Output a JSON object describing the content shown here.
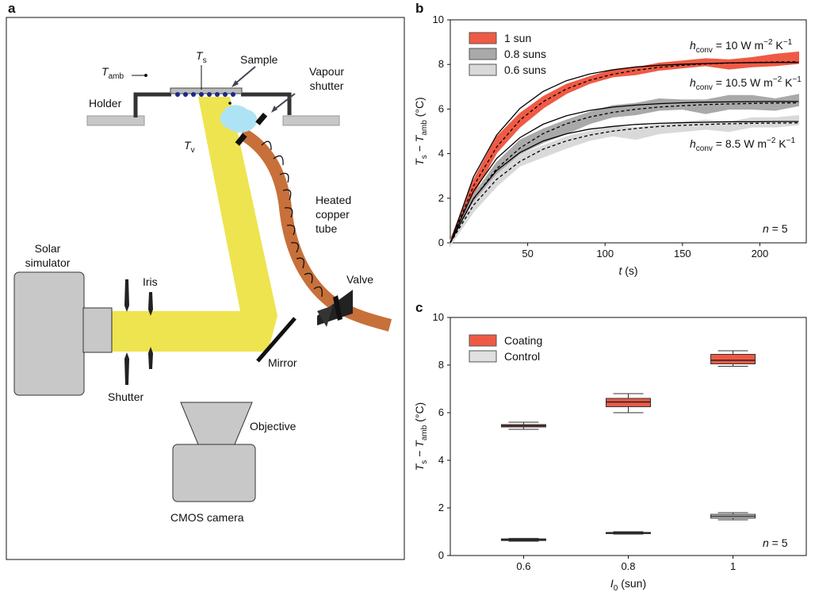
{
  "panel_labels": [
    "a",
    "b",
    "c"
  ],
  "diagram": {
    "labels": [
      {
        "segments": [
          {
            "t": "T",
            "s": "i"
          },
          {
            "t": "amb",
            "s": "sub"
          }
        ]
      },
      {
        "segments": [
          {
            "t": "T",
            "s": "i"
          },
          {
            "t": "s",
            "s": "sub"
          }
        ]
      },
      {
        "lines": [
          "Sample"
        ]
      },
      {
        "lines": [
          "Vapour",
          "shutter"
        ]
      },
      {
        "lines": [
          "Holder"
        ]
      },
      {
        "segments": [
          {
            "t": "T",
            "s": "i"
          },
          {
            "t": "v",
            "s": "sub"
          }
        ]
      },
      {
        "lines": [
          "Heated",
          "copper",
          "tube"
        ]
      },
      {
        "lines": [
          "Solar",
          "simulator"
        ]
      },
      {
        "lines": [
          "Iris"
        ]
      },
      {
        "lines": [
          "Valve"
        ]
      },
      {
        "lines": [
          "Mirror"
        ]
      },
      {
        "lines": [
          "Shutter"
        ]
      },
      {
        "lines": [
          "Objective"
        ]
      },
      {
        "lines": [
          "CMOS camera"
        ]
      }
    ]
  },
  "chart_data": [
    {
      "type": "line",
      "x": [
        0,
        15,
        30,
        45,
        60,
        75,
        90,
        105,
        120,
        135,
        150,
        165,
        180,
        195,
        210,
        225
      ],
      "xlim": [
        0,
        230
      ],
      "xticks": [
        50,
        100,
        150,
        200
      ],
      "ylim": [
        0,
        10
      ],
      "yticks": [
        0,
        2,
        4,
        6,
        8,
        10
      ],
      "xlabel": [
        {
          "t": "t",
          "s": "i"
        },
        {
          "t": " (s)"
        }
      ],
      "ylabel": [
        {
          "t": "T",
          "s": "i"
        },
        {
          "t": "s",
          "s": "sub"
        },
        {
          "t": " − "
        },
        {
          "t": "T",
          "s": "i"
        },
        {
          "t": "amb",
          "s": "sub"
        },
        {
          "t": " (°C)"
        }
      ],
      "legend": "upper left",
      "series": [
        {
          "name": "1 sun",
          "color": "#ef5a45",
          "values": [
            0,
            2.5,
            4.4,
            5.5,
            6.3,
            6.9,
            7.3,
            7.6,
            7.7,
            7.9,
            8.0,
            8.1,
            8.0,
            8.1,
            8.2,
            8.3
          ],
          "errors": [
            0.1,
            0.3,
            0.35,
            0.3,
            0.25,
            0.2,
            0.15,
            0.15,
            0.15,
            0.15,
            0.15,
            0.15,
            0.2,
            0.2,
            0.25,
            0.25
          ]
        },
        {
          "name": "0.8 suns",
          "color": "#a9a9a9",
          "values": [
            0,
            1.9,
            3.3,
            4.3,
            4.8,
            5.2,
            5.6,
            5.9,
            6.0,
            6.2,
            6.2,
            6.1,
            6.3,
            6.3,
            6.2,
            6.4
          ],
          "errors": [
            0.1,
            0.25,
            0.3,
            0.3,
            0.3,
            0.3,
            0.25,
            0.25,
            0.25,
            0.25,
            0.2,
            0.3,
            0.3,
            0.3,
            0.25,
            0.25
          ]
        },
        {
          "name": "0.6 suns",
          "color": "#d9d9d9",
          "values": [
            0,
            1.6,
            2.8,
            3.7,
            4.1,
            4.5,
            4.8,
            5.0,
            4.9,
            5.1,
            5.2,
            5.3,
            5.2,
            5.4,
            5.4,
            5.5
          ],
          "errors": [
            0.1,
            0.2,
            0.25,
            0.25,
            0.25,
            0.25,
            0.2,
            0.2,
            0.25,
            0.2,
            0.2,
            0.2,
            0.2,
            0.2,
            0.2,
            0.2
          ]
        },
        {
          "color": "#000000",
          "line_style": "solid",
          "values": [
            0,
            2.96,
            4.84,
            6.03,
            6.79,
            7.27,
            7.57,
            7.76,
            7.89,
            7.96,
            8.01,
            8.04,
            8.07,
            8.08,
            8.09,
            8.09
          ]
        },
        {
          "color": "#000000",
          "line_style": "dashed",
          "values": [
            0,
            2.55,
            4.3,
            5.5,
            6.33,
            6.9,
            7.29,
            7.56,
            7.74,
            7.87,
            7.96,
            8.02,
            8.06,
            8.09,
            8.11,
            8.12
          ]
        },
        {
          "color": "#000000",
          "line_style": "solid",
          "values": [
            0,
            2.32,
            3.79,
            4.72,
            5.32,
            5.7,
            5.94,
            6.09,
            6.18,
            6.24,
            6.28,
            6.31,
            6.32,
            6.33,
            6.34,
            6.34
          ]
        },
        {
          "color": "#000000",
          "line_style": "dashed",
          "values": [
            0,
            1.97,
            3.33,
            4.25,
            4.9,
            5.34,
            5.64,
            5.85,
            5.99,
            6.09,
            6.15,
            6.2,
            6.23,
            6.25,
            6.27,
            6.28
          ]
        },
        {
          "color": "#000000",
          "line_style": "solid",
          "values": [
            0,
            1.99,
            3.25,
            4.05,
            4.57,
            4.89,
            5.1,
            5.22,
            5.31,
            5.36,
            5.39,
            5.41,
            5.43,
            5.43,
            5.44,
            5.44
          ]
        },
        {
          "color": "#000000",
          "line_style": "dashed",
          "values": [
            0,
            1.69,
            2.85,
            3.65,
            4.2,
            4.57,
            4.83,
            5.01,
            5.13,
            5.22,
            5.27,
            5.31,
            5.34,
            5.36,
            5.37,
            5.38
          ]
        }
      ],
      "annotations": [
        [
          {
            "t": "h",
            "s": "i"
          },
          {
            "t": "conv",
            "s": "sub"
          },
          {
            "t": " = 10 W m"
          },
          {
            "t": "−2",
            "s": "sup"
          },
          {
            "t": " K"
          },
          {
            "t": "−1",
            "s": "sup"
          }
        ],
        [
          {
            "t": "h",
            "s": "i"
          },
          {
            "t": "conv",
            "s": "sub"
          },
          {
            "t": " = 10.5 W m"
          },
          {
            "t": "−2",
            "s": "sup"
          },
          {
            "t": " K"
          },
          {
            "t": "−1",
            "s": "sup"
          }
        ],
        [
          {
            "t": "h",
            "s": "i"
          },
          {
            "t": "conv",
            "s": "sub"
          },
          {
            "t": " = 8.5 W m"
          },
          {
            "t": "−2",
            "s": "sup"
          },
          {
            "t": " K"
          },
          {
            "t": "−1",
            "s": "sup"
          }
        ],
        [
          {
            "t": "n",
            "s": "i"
          },
          {
            "t": " = 5"
          }
        ]
      ]
    },
    {
      "type": "box",
      "x": [
        0.6,
        0.8,
        1
      ],
      "xlim": [
        0.46,
        1.14
      ],
      "xticks": [
        0.6,
        0.8,
        1
      ],
      "ylim": [
        0,
        10
      ],
      "yticks": [
        0,
        2,
        4,
        6,
        8,
        10
      ],
      "xlabel": [
        {
          "t": "I",
          "s": "i"
        },
        {
          "t": "0",
          "s": "sub"
        },
        {
          "t": " (sun)"
        }
      ],
      "ylabel": [
        {
          "t": "T",
          "s": "i"
        },
        {
          "t": "s",
          "s": "sub"
        },
        {
          "t": " − "
        },
        {
          "t": "T",
          "s": "i"
        },
        {
          "t": "amb",
          "s": "sub"
        },
        {
          "t": " (°C)"
        }
      ],
      "legend": "upper left",
      "series": [
        {
          "name": "Coating",
          "color": "#ef5a45",
          "min": [
            5.3,
            6.0,
            7.95
          ],
          "q1": [
            5.4,
            6.25,
            8.05
          ],
          "median": [
            5.45,
            6.45,
            8.2
          ],
          "q3": [
            5.5,
            6.6,
            8.45
          ],
          "max": [
            5.6,
            6.8,
            8.6
          ]
        },
        {
          "name": "Control",
          "color": "#e0e0e0",
          "min": [
            0.6,
            0.9,
            1.5
          ],
          "q1": [
            0.63,
            0.92,
            1.57
          ],
          "median": [
            0.66,
            0.95,
            1.65
          ],
          "q3": [
            0.7,
            0.97,
            1.73
          ],
          "max": [
            0.72,
            1.0,
            1.8
          ]
        }
      ],
      "annotations": [
        [
          {
            "t": "n",
            "s": "i"
          },
          {
            "t": " = 5"
          }
        ]
      ]
    }
  ]
}
